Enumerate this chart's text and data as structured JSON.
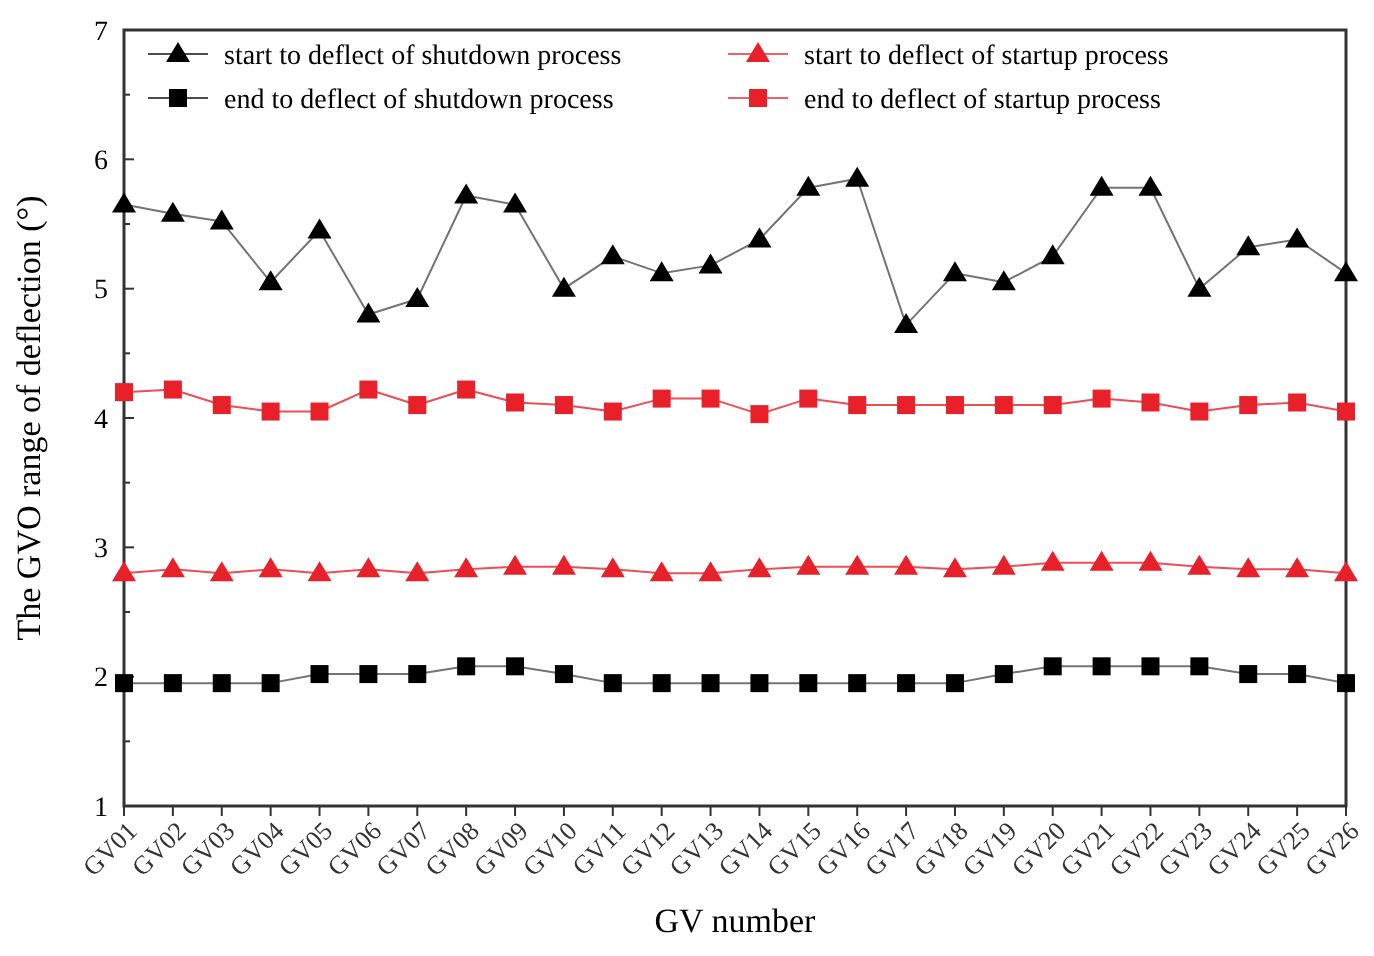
{
  "chart_data": {
    "type": "line",
    "xlabel": "GV number",
    "ylabel": "The GVO range of deflection (°)",
    "categories": [
      "GV01",
      "GV02",
      "GV03",
      "GV04",
      "GV05",
      "GV06",
      "GV07",
      "GV08",
      "GV09",
      "GV10",
      "GV11",
      "GV12",
      "GV13",
      "GV14",
      "GV15",
      "GV16",
      "GV17",
      "GV18",
      "GV19",
      "GV20",
      "GV21",
      "GV22",
      "GV23",
      "GV24",
      "GV25",
      "GV26"
    ],
    "series": [
      {
        "name": "start to deflect of shutdown process",
        "color": "#000000",
        "marker": "triangle",
        "values": [
          5.65,
          5.58,
          5.52,
          5.05,
          5.45,
          4.8,
          4.92,
          5.72,
          5.65,
          5.0,
          5.25,
          5.12,
          5.18,
          5.38,
          5.78,
          5.85,
          4.72,
          5.12,
          5.05,
          5.25,
          5.78,
          5.78,
          5.0,
          5.32,
          5.38,
          5.12
        ]
      },
      {
        "name": "start to deflect of startup process",
        "color": "#e8202a",
        "marker": "triangle",
        "values": [
          2.8,
          2.83,
          2.8,
          2.83,
          2.8,
          2.83,
          2.8,
          2.83,
          2.85,
          2.85,
          2.83,
          2.8,
          2.8,
          2.83,
          2.85,
          2.85,
          2.85,
          2.83,
          2.85,
          2.88,
          2.88,
          2.88,
          2.85,
          2.83,
          2.83,
          2.8
        ]
      },
      {
        "name": "end to deflect of shutdown process",
        "color": "#000000",
        "marker": "square",
        "values": [
          1.95,
          1.95,
          1.95,
          1.95,
          2.02,
          2.02,
          2.02,
          2.08,
          2.08,
          2.02,
          1.95,
          1.95,
          1.95,
          1.95,
          1.95,
          1.95,
          1.95,
          1.95,
          2.02,
          2.08,
          2.08,
          2.08,
          2.08,
          2.02,
          2.02,
          1.95
        ]
      },
      {
        "name": "end to deflect of startup process",
        "color": "#e8202a",
        "marker": "square",
        "values": [
          4.2,
          4.22,
          4.1,
          4.05,
          4.05,
          4.22,
          4.1,
          4.22,
          4.12,
          4.1,
          4.05,
          4.15,
          4.15,
          4.03,
          4.15,
          4.1,
          4.1,
          4.1,
          4.1,
          4.1,
          4.15,
          4.12,
          4.05,
          4.1,
          4.12,
          4.05
        ]
      }
    ],
    "ylim": [
      1,
      7
    ],
    "yticks": [
      1,
      2,
      3,
      4,
      5,
      6,
      7
    ],
    "legend": "top",
    "grid": false,
    "line_style": "solid"
  }
}
